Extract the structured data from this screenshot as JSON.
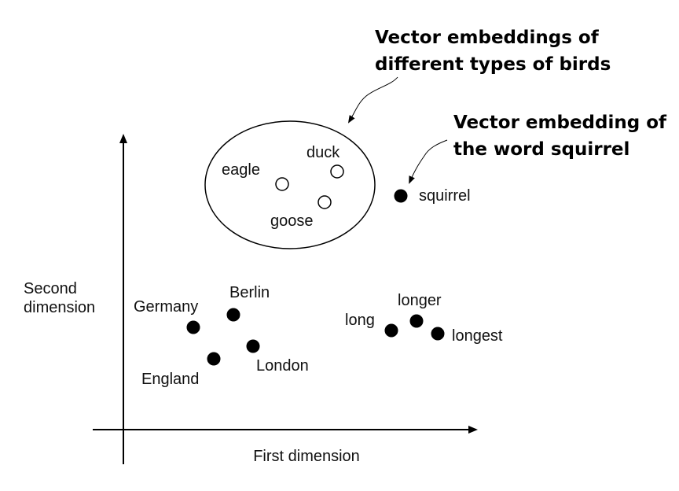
{
  "annotations": {
    "birds": [
      "Vector embeddings of",
      "different types of birds"
    ],
    "squirrel": [
      "Vector embedding of",
      "the word squirrel"
    ]
  },
  "axes": {
    "y_label": [
      "Second",
      "dimension"
    ],
    "x_label": "First dimension"
  },
  "points": {
    "eagle": "eagle",
    "duck": "duck",
    "goose": "goose",
    "squirrel": "squirrel",
    "germany": "Germany",
    "berlin": "Berlin",
    "england": "England",
    "london": "London",
    "long": "long",
    "longer": "longer",
    "longest": "longest"
  },
  "marker_styles": {
    "bird_points": "open circle",
    "other_points": "filled circle"
  },
  "colors": {
    "ink": "#000000",
    "background": "#ffffff"
  }
}
